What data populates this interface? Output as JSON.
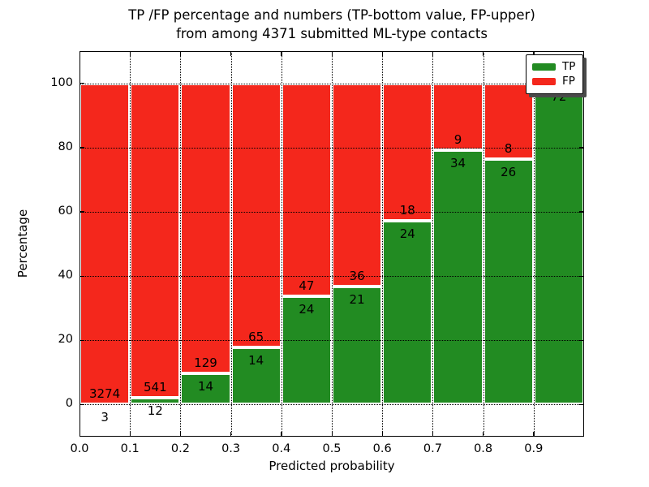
{
  "figure": {
    "title_line1": "TP /FP percentage and numbers (TP-bottom value, FP-upper)",
    "title_line2": "from among 4371 submitted ML-type contacts",
    "xlabel": "Predicted probability",
    "ylabel": "Percentage"
  },
  "legend": {
    "position": "upper-right",
    "items": [
      {
        "label": "TP",
        "color": "#228B22"
      },
      {
        "label": "FP",
        "color": "#F4271C"
      }
    ]
  },
  "colors": {
    "tp_green": "#228B22",
    "fp_red": "#F4271C",
    "background": "#ffffff",
    "bar_edge": "#ffffff",
    "grid": "#000000"
  },
  "chart_data": {
    "type": "bar",
    "subtype": "stacked-percentage",
    "title": "TP /FP percentage and numbers (TP-bottom value, FP-upper) from among 4371 submitted ML-type contacts",
    "xlabel": "Predicted probability",
    "ylabel": "Percentage",
    "total_contacts": 4371,
    "grid": true,
    "legend_position": "upper right",
    "xlim": [
      0.0,
      1.0
    ],
    "ylim": [
      -10,
      110
    ],
    "x_ticks": [
      "0.0",
      "0.1",
      "0.2",
      "0.3",
      "0.4",
      "0.5",
      "0.6",
      "0.7",
      "0.8",
      "0.9"
    ],
    "y_ticks": [
      0,
      20,
      40,
      60,
      80,
      100
    ],
    "bin_width": 0.1,
    "bin_starts": [
      0.0,
      0.1,
      0.2,
      0.3,
      0.4,
      0.5,
      0.6,
      0.7,
      0.8,
      0.9
    ],
    "series": [
      {
        "name": "TP",
        "color": "#228B22",
        "values": [
          3,
          12,
          14,
          14,
          24,
          21,
          24,
          34,
          26,
          72
        ]
      },
      {
        "name": "FP",
        "color": "#F4271C",
        "values": [
          3274,
          541,
          129,
          65,
          47,
          36,
          18,
          9,
          8,
          0
        ]
      }
    ],
    "tp_percent_per_bin": [
      0.09,
      2.17,
      9.79,
      17.72,
      33.8,
      36.84,
      57.14,
      79.07,
      76.47,
      100.0
    ]
  }
}
